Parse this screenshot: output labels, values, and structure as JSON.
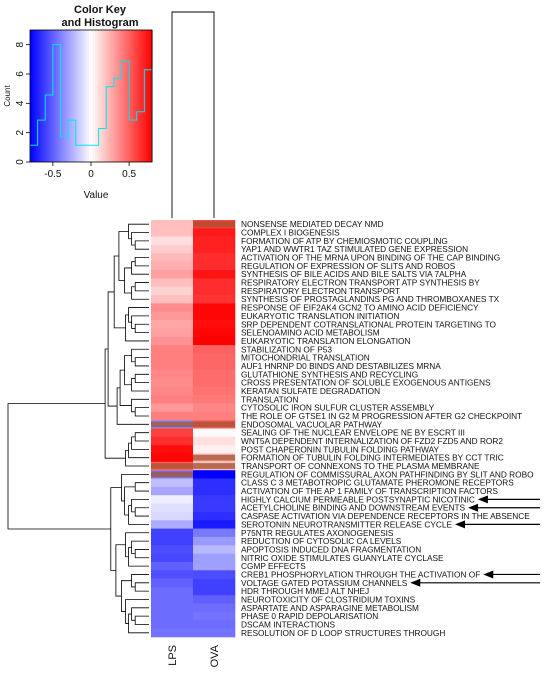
{
  "chart_data": {
    "type": "heatmap",
    "color_key": {
      "title_line1": "Color Key",
      "title_line2": "and Histogram",
      "xlabel": "Value",
      "ylabel": "Count",
      "x_ticks": [
        "-0.5",
        "0",
        "0.5"
      ],
      "x_tick_values": [
        -0.5,
        0,
        0.5
      ],
      "y_ticks": [
        "0",
        "2",
        "4",
        "6",
        "8"
      ],
      "y_tick_values": [
        0,
        2,
        4,
        6,
        8
      ],
      "xlim": [
        -0.8,
        0.8
      ],
      "ylim": [
        0,
        9
      ],
      "colors": {
        "low": "#0000ff",
        "mid": "#ffffff",
        "high": "#ff0000"
      },
      "histogram_color": "#00e5ee"
    },
    "columns": [
      "LPS",
      "OVA"
    ],
    "arrow_rows": [
      "HIGHLY CALCIUM PERMEABLE POSTSYNAPTIC NICOTINIC",
      "ACETYLCHOLINE BINDING AND DOWNSTREAM EVENTS",
      "SEROTONIN NEUROTRANSMITTER RELEASE CYCLE",
      "CREB1 PHOSPHORYLATION THROUGH THE ACTIVATION OF",
      "VOLTAGE GATED POTASSIUM CHANNELS"
    ],
    "rows": [
      {
        "label": "NONSENSE MEDIATED DECAY NMD",
        "values": [
          0.2,
          0.6
        ],
        "highlight": [
          false,
          true
        ]
      },
      {
        "label": "COMPLEX I BIOGENESIS",
        "values": [
          0.2,
          0.72
        ],
        "highlight": [
          false,
          false
        ]
      },
      {
        "label": "FORMATION OF ATP BY CHEMIOSMOTIC COUPLING",
        "values": [
          0.1,
          0.7
        ],
        "highlight": [
          false,
          false
        ]
      },
      {
        "label": "YAP1 AND WWTR1 TAZ STIMULATED GENE EXPRESSION",
        "values": [
          0.16,
          0.7
        ],
        "highlight": [
          false,
          false
        ]
      },
      {
        "label": "ACTIVATION OF THE MRNA UPON BINDING OF THE CAP BINDING",
        "values": [
          0.22,
          0.66
        ],
        "highlight": [
          false,
          false
        ]
      },
      {
        "label": "REGULATION OF EXPRESSION OF SLITS AND ROBOS",
        "values": [
          0.25,
          0.66
        ],
        "highlight": [
          false,
          false
        ]
      },
      {
        "label": "SYNTHESIS OF BILE ACIDS AND BILE SALTS VIA 7ALPHA",
        "values": [
          0.3,
          0.74
        ],
        "highlight": [
          false,
          false
        ]
      },
      {
        "label": "RESPIRATORY ELECTRON TRANSPORT ATP SYNTHESIS BY",
        "values": [
          0.2,
          0.66
        ],
        "highlight": [
          false,
          false
        ]
      },
      {
        "label": "RESPIRATORY ELECTRON TRANSPORT",
        "values": [
          0.14,
          0.66
        ],
        "highlight": [
          false,
          false
        ]
      },
      {
        "label": "SYNTHESIS OF PROSTAGLANDINS PG AND THROMBOXANES TX",
        "values": [
          0.2,
          0.64
        ],
        "highlight": [
          false,
          false
        ]
      },
      {
        "label": "RESPONSE OF EIF2AK4 GCN2 TO AMINO ACID DEFICIENCY",
        "values": [
          0.36,
          0.78
        ],
        "highlight": [
          false,
          false
        ]
      },
      {
        "label": "EUKARYOTIC TRANSLATION INITIATION",
        "values": [
          0.32,
          0.78
        ],
        "highlight": [
          false,
          false
        ]
      },
      {
        "label": "SRP DEPENDENT COTRANSLATIONAL PROTEIN TARGETING TO",
        "values": [
          0.28,
          0.76
        ],
        "highlight": [
          false,
          false
        ]
      },
      {
        "label": "SELENOAMINO ACID METABOLISM",
        "values": [
          0.3,
          0.78
        ],
        "highlight": [
          false,
          false
        ]
      },
      {
        "label": "EUKARYOTIC TRANSLATION ELONGATION",
        "values": [
          0.34,
          0.86
        ],
        "highlight": [
          false,
          false
        ]
      },
      {
        "label": "STABILIZATION OF P53",
        "values": [
          0.4,
          0.5
        ],
        "highlight": [
          false,
          false
        ]
      },
      {
        "label": "MITOCHONDRIAL TRANSLATION",
        "values": [
          0.4,
          0.48
        ],
        "highlight": [
          false,
          false
        ]
      },
      {
        "label": "AUF1 HNRNP D0 BINDS AND DESTABILIZES MRNA",
        "values": [
          0.4,
          0.48
        ],
        "highlight": [
          false,
          false
        ]
      },
      {
        "label": "GLUTATHIONE SYNTHESIS AND RECYCLING",
        "values": [
          0.38,
          0.46
        ],
        "highlight": [
          false,
          false
        ]
      },
      {
        "label": "CROSS PRESENTATION OF SOLUBLE EXOGENOUS ANTIGENS",
        "values": [
          0.36,
          0.46
        ],
        "highlight": [
          false,
          false
        ]
      },
      {
        "label": "KERATAN SULFATE DEGRADATION",
        "values": [
          0.38,
          0.44
        ],
        "highlight": [
          false,
          false
        ]
      },
      {
        "label": "TRANSLATION",
        "values": [
          0.4,
          0.42
        ],
        "highlight": [
          false,
          false
        ]
      },
      {
        "label": "CYTOSOLIC IRON SULFUR CLUSTER ASSEMBLY",
        "values": [
          0.32,
          0.38
        ],
        "highlight": [
          false,
          false
        ]
      },
      {
        "label": "THE ROLE OF GTSE1 IN G2 M PROGRESSION AFTER G2 CHECKPOINT",
        "values": [
          0.4,
          0.4
        ],
        "highlight": [
          false,
          false
        ]
      },
      {
        "label": "ENDOSOMAL VACUOLAR PATHWAY",
        "values": [
          -0.35,
          0.5
        ],
        "highlight": [
          true,
          true
        ]
      },
      {
        "label": "SEALING OF THE NUCLEAR ENVELOPE NE BY ESCRT III",
        "values": [
          0.6,
          0.02
        ],
        "highlight": [
          false,
          false
        ]
      },
      {
        "label": "WNT5A DEPENDENT INTERNALIZATION OF FZD2 FZD5 AND ROR2",
        "values": [
          0.66,
          0.1
        ],
        "highlight": [
          false,
          false
        ]
      },
      {
        "label": "POST CHAPERONIN TUBULIN FOLDING PATHWAY",
        "values": [
          0.76,
          0.05
        ],
        "highlight": [
          false,
          false
        ]
      },
      {
        "label": "FORMATION OF TUBULIN FOLDING INTERMEDIATES BY CCT TRIC",
        "values": [
          0.78,
          0.22
        ],
        "highlight": [
          false,
          true
        ]
      },
      {
        "label": "TRANSPORT OF CONNEXONS TO THE PLASMA MEMBRANE",
        "values": [
          0.5,
          0.2
        ],
        "highlight": [
          true,
          true
        ]
      },
      {
        "label": "REGULATION OF COMMISSURAL AXON PATHFINDING BY SLIT AND ROBO",
        "values": [
          -0.4,
          -0.8
        ],
        "highlight": [
          true,
          false
        ]
      },
      {
        "label": "CLASS C 3 METABOTROPIC GLUTAMATE PHEROMONE RECEPTORS",
        "values": [
          -0.2,
          -0.66
        ],
        "highlight": [
          false,
          false
        ]
      },
      {
        "label": "ACTIVATION OF THE AP 1 FAMILY OF TRANSCRIPTION FACTORS",
        "values": [
          -0.28,
          -0.66
        ],
        "highlight": [
          false,
          false
        ]
      },
      {
        "label": "HIGHLY CALCIUM PERMEABLE POSTSYNAPTIC NICOTINIC",
        "values": [
          -0.05,
          -0.62
        ],
        "highlight": [
          false,
          false
        ]
      },
      {
        "label": "ACETYLCHOLINE BINDING AND DOWNSTREAM EVENTS",
        "values": [
          -0.1,
          -0.62
        ],
        "highlight": [
          false,
          false
        ]
      },
      {
        "label": "CASPASE ACTIVATION VIA DEPENDENCE RECEPTORS IN THE ABSENCE",
        "values": [
          -0.12,
          -0.66
        ],
        "highlight": [
          false,
          false
        ]
      },
      {
        "label": "SEROTONIN NEUROTRANSMITTER RELEASE CYCLE",
        "values": [
          -0.26,
          -0.72
        ],
        "highlight": [
          false,
          false
        ]
      },
      {
        "label": "P75NTR REGULATES AXONOGENESIS",
        "values": [
          -0.6,
          -0.42
        ],
        "highlight": [
          false,
          false
        ]
      },
      {
        "label": "REDUCTION OF CYTOSOLIC CA LEVELS",
        "values": [
          -0.6,
          -0.32
        ],
        "highlight": [
          false,
          false
        ]
      },
      {
        "label": "APOPTOSIS INDUCED DNA FRAGMENTATION",
        "values": [
          -0.56,
          -0.22
        ],
        "highlight": [
          false,
          false
        ]
      },
      {
        "label": "NITRIC OXIDE STIMULATES GUANYLATE CYCLASE",
        "values": [
          -0.58,
          -0.3
        ],
        "highlight": [
          false,
          false
        ]
      },
      {
        "label": "CGMP EFFECTS",
        "values": [
          -0.5,
          -0.3
        ],
        "highlight": [
          false,
          false
        ]
      },
      {
        "label": "CREB1 PHOSPHORYLATION THROUGH THE ACTIVATION OF",
        "values": [
          -0.55,
          -0.56
        ],
        "highlight": [
          false,
          false
        ]
      },
      {
        "label": "VOLTAGE GATED POTASSIUM CHANNELS",
        "values": [
          -0.5,
          -0.6
        ],
        "highlight": [
          false,
          false
        ]
      },
      {
        "label": "HDR THROUGH MMEJ ALT NHEJ",
        "values": [
          -0.46,
          -0.6
        ],
        "highlight": [
          false,
          false
        ]
      },
      {
        "label": "NEUROTOXICITY OF CLOSTRIDIUM TOXINS",
        "values": [
          -0.46,
          -0.5
        ],
        "highlight": [
          false,
          false
        ]
      },
      {
        "label": "ASPARTATE AND ASPARAGINE METABOLISM",
        "values": [
          -0.46,
          -0.46
        ],
        "highlight": [
          false,
          false
        ]
      },
      {
        "label": "PHASE 0 RAPID DEPOLARISATION",
        "values": [
          -0.46,
          -0.44
        ],
        "highlight": [
          false,
          false
        ]
      },
      {
        "label": "DSCAM INTERACTIONS",
        "values": [
          -0.46,
          -0.46
        ],
        "highlight": [
          false,
          false
        ]
      },
      {
        "label": "RESOLUTION OF D LOOP STRUCTURES THROUGH",
        "values": [
          -0.44,
          -0.44
        ],
        "highlight": [
          false,
          false
        ]
      }
    ]
  },
  "colors": {
    "highlight": "#a0522d",
    "arrow": "#000000",
    "dendrogram": "#000000"
  }
}
